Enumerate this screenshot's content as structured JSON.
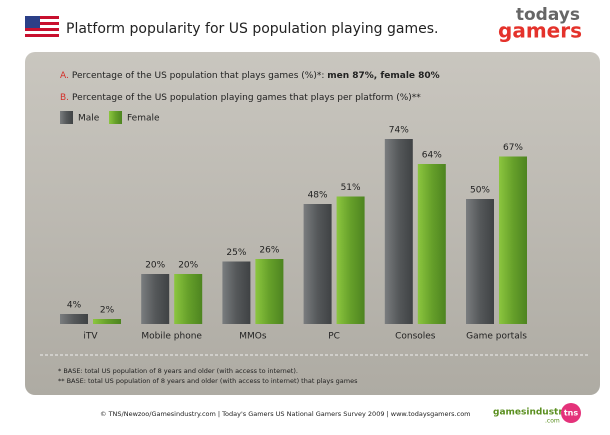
{
  "chart_data": {
    "type": "bar",
    "title": "Platform popularity for US population playing games.",
    "notes": [
      {
        "letter": "A.",
        "text": "Percentage of the US population that plays games (%)*: ",
        "bold": "men 87%, female 80%"
      },
      {
        "letter": "B.",
        "text": "Percentage of the US population playing games that plays per platform (%)**"
      }
    ],
    "categories": [
      "iTV",
      "Mobile phone",
      "MMOs",
      "PC",
      "Consoles",
      "Game portals"
    ],
    "series": [
      {
        "name": "Male",
        "color": "#5b5e60",
        "values": [
          4,
          20,
          25,
          48,
          74,
          50
        ],
        "value_labels": [
          "4%",
          "20%",
          "25%",
          "48%",
          "74%",
          "50%"
        ]
      },
      {
        "name": "Female",
        "color": "#6ca12c",
        "values": [
          2,
          20,
          26,
          51,
          64,
          67
        ],
        "value_labels": [
          "2%",
          "20%",
          "26%",
          "51%",
          "64%",
          "67%"
        ]
      }
    ],
    "footnotes": [
      "* BASE: total US population of 8 years and older (with access to internet).",
      "** BASE: total US population of 8 years and older (with access to  internet) that plays games"
    ],
    "source": "© TNS/Newzoo/Gamesindustry.com | Today's Gamers US National Gamers Survey 2009 | www.todaysgamers.com",
    "logos": {
      "top": [
        "todays",
        "gamers"
      ],
      "bottom": [
        "gamesindustry",
        ".com"
      ],
      "tns": "tns"
    }
  }
}
